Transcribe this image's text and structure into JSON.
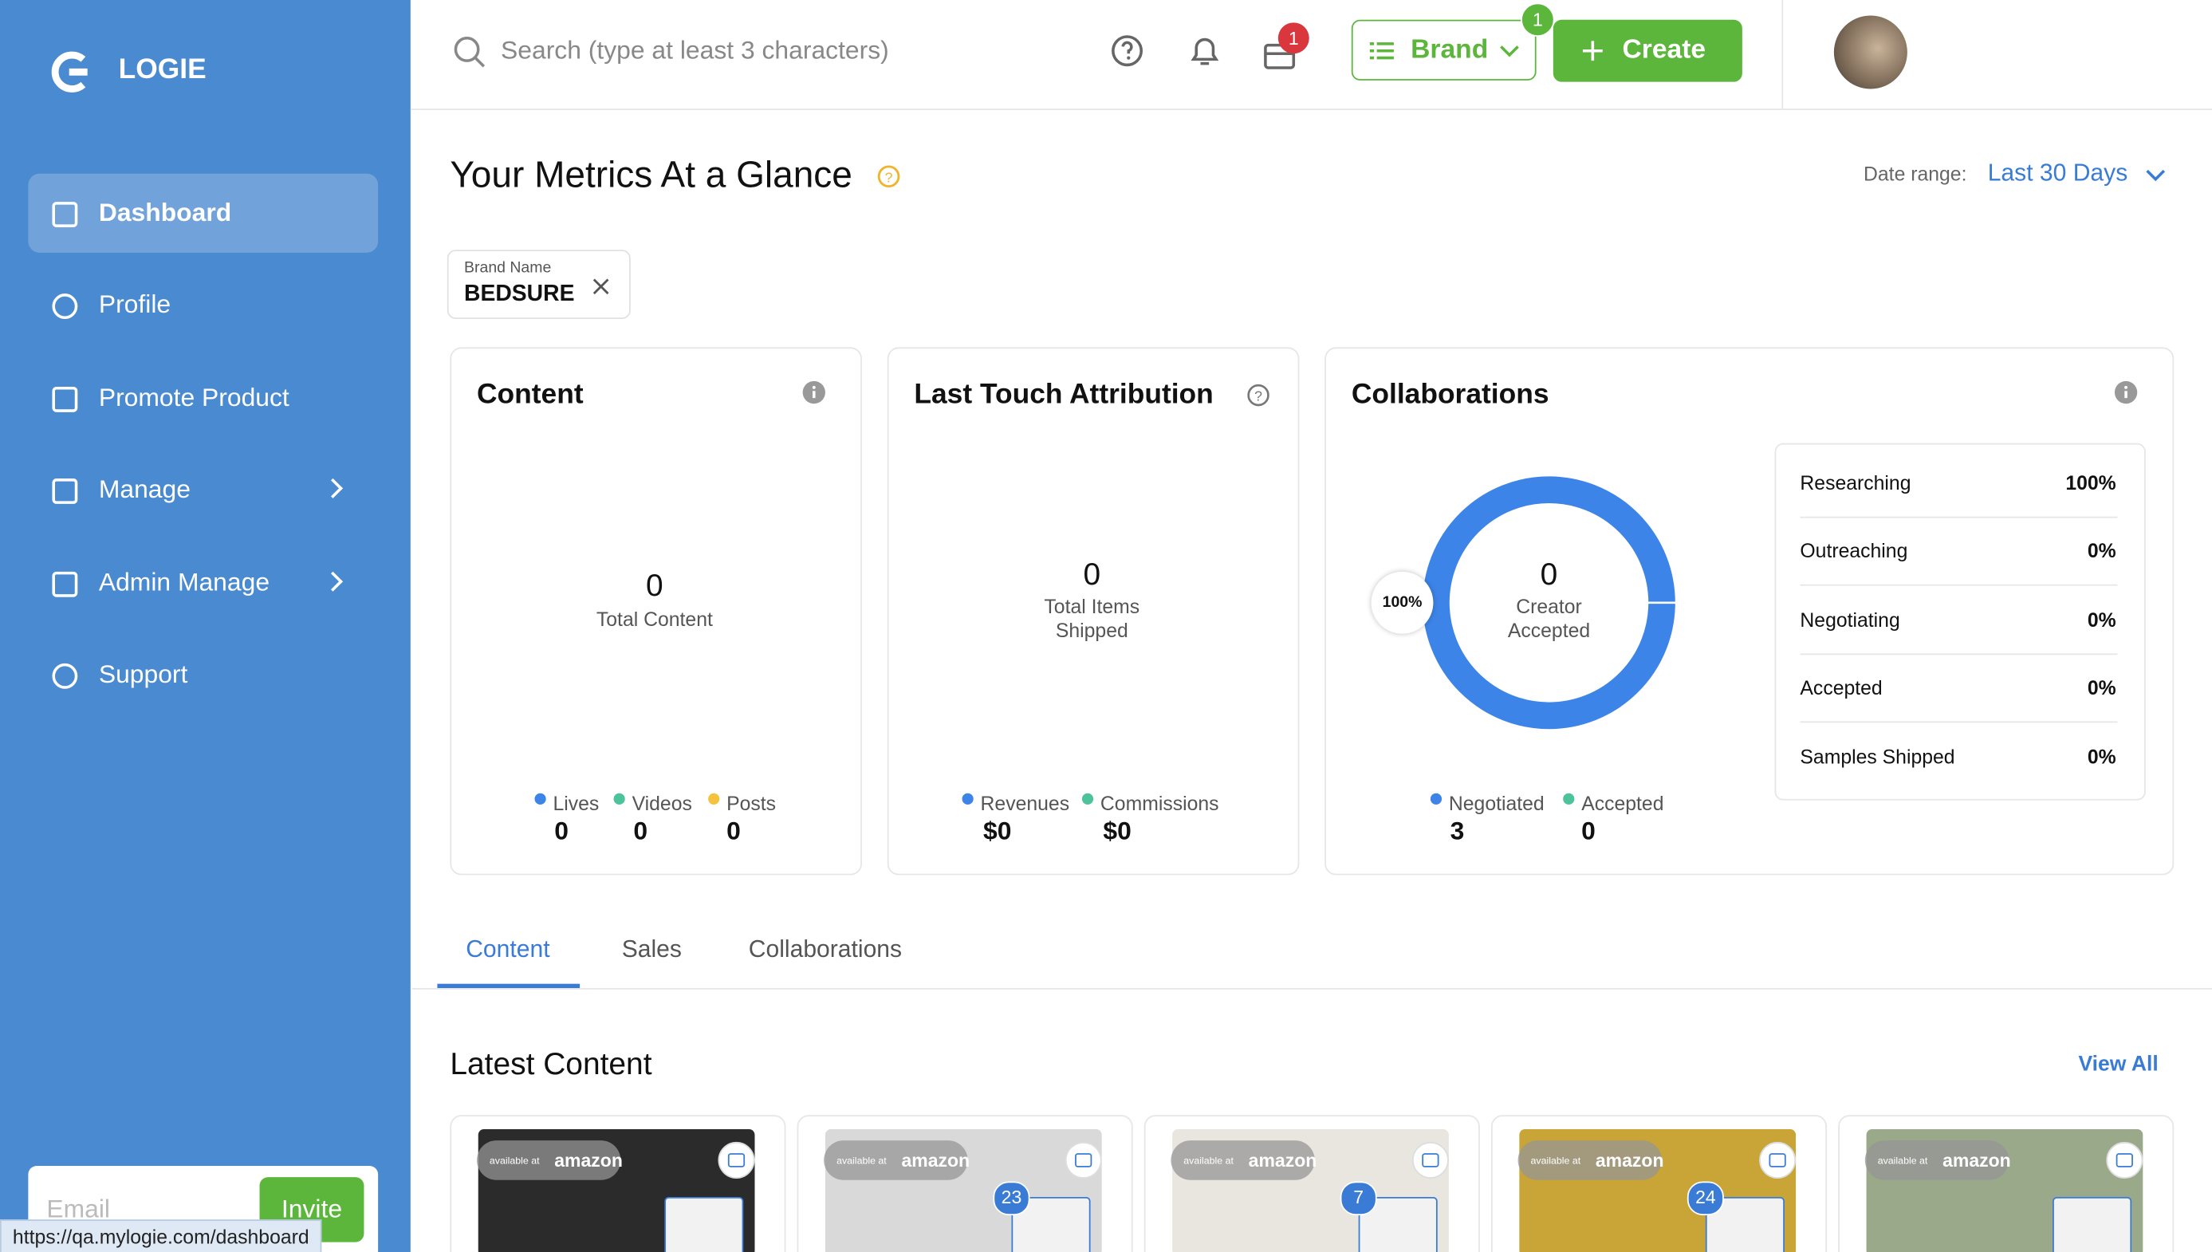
{
  "sidebar": {
    "brand": "LOGIE",
    "nav": [
      "Dashboard",
      "Profile",
      "Promote Product",
      "Manage",
      "Admin Manage",
      "Support"
    ],
    "email_placeholder": "Email",
    "invite": "Invite"
  },
  "topbar": {
    "search_placeholder": "Search (type at least 3 characters)",
    "cart_badge": "1",
    "brand_button": "Brand",
    "brand_badge": "1",
    "create_button": "Create"
  },
  "header": {
    "title": "Your Metrics At a Glance",
    "date_range_label": "Date range:",
    "date_range_value": "Last 30 Days"
  },
  "filter": {
    "label": "Brand Name",
    "value": "BEDSURE"
  },
  "content_card": {
    "title": "Content",
    "total": "0",
    "total_label": "Total Content",
    "legend": [
      {
        "name": "Lives",
        "value": "0"
      },
      {
        "name": "Videos",
        "value": "0"
      },
      {
        "name": "Posts",
        "value": "0"
      }
    ]
  },
  "attribution_card": {
    "title": "Last Touch Attribution",
    "total": "0",
    "total_label": [
      "Total Items",
      "Shipped"
    ],
    "legend": [
      {
        "name": "Revenues",
        "value": "$0"
      },
      {
        "name": "Commissions",
        "value": "$0"
      }
    ]
  },
  "collaborations_card": {
    "title": "Collaborations",
    "donut_label": "100%",
    "total": "0",
    "total_label": [
      "Creator",
      "Accepted"
    ],
    "legend": [
      {
        "name": "Negotiated",
        "value": "3"
      },
      {
        "name": "Accepted",
        "value": "0"
      }
    ],
    "stages": [
      [
        "Researching",
        "100%"
      ],
      [
        "Outreaching",
        "0%"
      ],
      [
        "Negotiating",
        "0%"
      ],
      [
        "Accepted",
        "0%"
      ],
      [
        "Samples Shipped",
        "0%"
      ]
    ]
  },
  "tabs": [
    "Content",
    "Sales",
    "Collaborations"
  ],
  "latest": {
    "title": "Latest Content",
    "view_all": "View All",
    "items": [
      {
        "store_prefix": "available at",
        "store": "amazon"
      },
      {
        "store_prefix": "available at",
        "store": "amazon",
        "count": "23"
      },
      {
        "store_prefix": "available at",
        "store": "amazon",
        "count": "7"
      },
      {
        "store_prefix": "available at",
        "store": "amazon",
        "count": "24"
      },
      {
        "store_prefix": "available at",
        "store": "amazon"
      }
    ]
  },
  "status_url": "https://qa.mylogie.com/dashboard"
}
